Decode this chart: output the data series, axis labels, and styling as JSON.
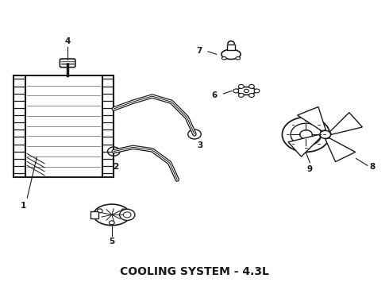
{
  "title": "COOLING SYSTEM - 4.3L",
  "title_fontsize": 10,
  "title_fontweight": "bold",
  "background_color": "#ffffff",
  "line_color": "#1a1a1a",
  "fig_width": 4.9,
  "fig_height": 3.6,
  "dpi": 100
}
